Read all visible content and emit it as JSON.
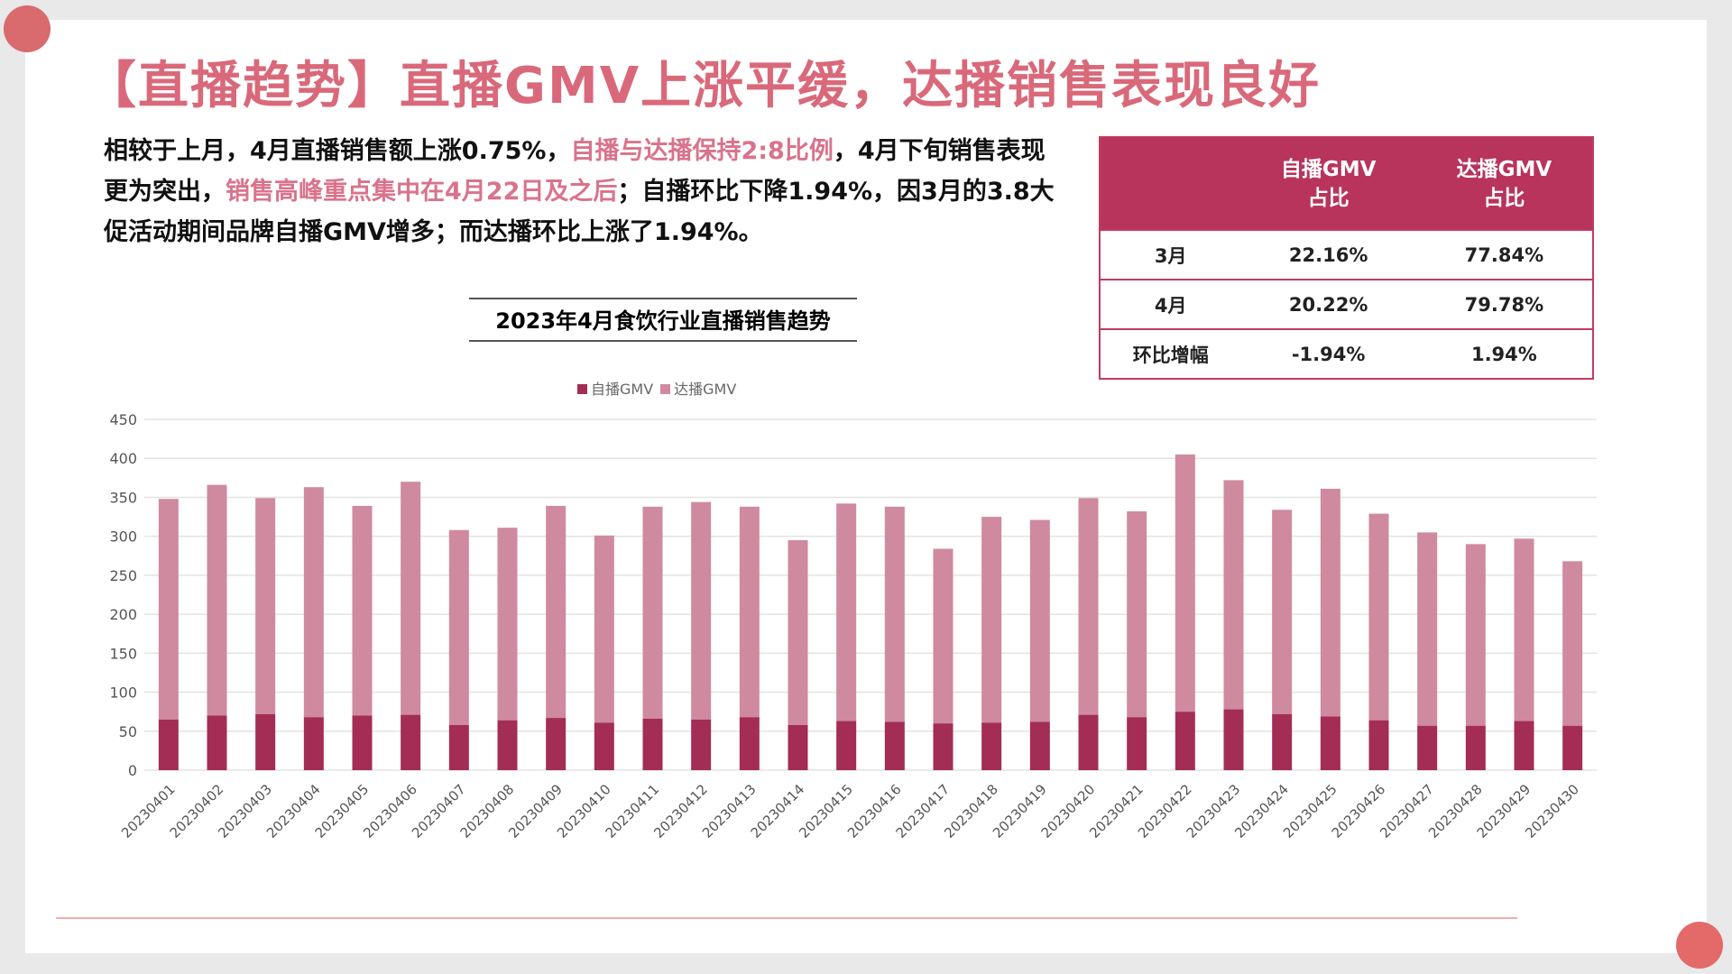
{
  "title": "【直播趋势】直播GMV上涨平缓，达播销售表现良好",
  "paragraph": {
    "p1": "相较于上月，4月直播销售额上涨0.75%，",
    "p2": "自播与达播保持2:8比例",
    "p3": "，4月下旬销售表现更为突出，",
    "p4": "销售高峰重点集中在4月22日及之后",
    "p5": "；自播环比下降1.94%，因3月的3.8大促活动期间品牌自播GMV增多；而达播环比上涨了1.94%。"
  },
  "table": {
    "headers": [
      "",
      "自播GMV\n占比",
      "达播GMV\n占比"
    ],
    "rows": [
      {
        "label": "3月",
        "self": "22.16%",
        "daren": "77.84%"
      },
      {
        "label": "4月",
        "self": "20.22%",
        "daren": "79.78%"
      },
      {
        "label": "环比增幅",
        "self": "-1.94%",
        "daren": "1.94%"
      }
    ]
  },
  "colors": {
    "self": "#a32d55",
    "daren": "#cf8a9f",
    "accent": "#b8345c",
    "negative": "#e3342f",
    "positive": "#1aa34a"
  },
  "chart_data": {
    "type": "bar",
    "stacked": true,
    "title": "2023年4月食饮行业直播销售趋势",
    "ylim": [
      0,
      450
    ],
    "yticks": [
      0,
      50,
      100,
      150,
      200,
      250,
      300,
      350,
      400,
      450
    ],
    "grid": true,
    "legend": "top",
    "categories": [
      "20230401",
      "20230402",
      "20230403",
      "20230404",
      "20230405",
      "20230406",
      "20230407",
      "20230408",
      "20230409",
      "20230410",
      "20230411",
      "20230412",
      "20230413",
      "20230414",
      "20230415",
      "20230416",
      "20230417",
      "20230418",
      "20230419",
      "20230420",
      "20230421",
      "20230422",
      "20230423",
      "20230424",
      "20230425",
      "20230426",
      "20230427",
      "20230428",
      "20230429",
      "20230430"
    ],
    "series": [
      {
        "name": "自播GMV",
        "values": [
          65,
          70,
          72,
          68,
          70,
          71,
          58,
          64,
          67,
          61,
          66,
          65,
          68,
          58,
          63,
          62,
          60,
          61,
          62,
          71,
          68,
          75,
          78,
          72,
          69,
          64,
          57,
          57,
          63,
          57
        ]
      },
      {
        "name": "达播GMV",
        "values": [
          283,
          296,
          277,
          295,
          269,
          299,
          250,
          247,
          272,
          240,
          272,
          279,
          270,
          237,
          279,
          276,
          224,
          264,
          259,
          278,
          264,
          330,
          294,
          262,
          292,
          265,
          248,
          233,
          234,
          211
        ]
      }
    ]
  }
}
